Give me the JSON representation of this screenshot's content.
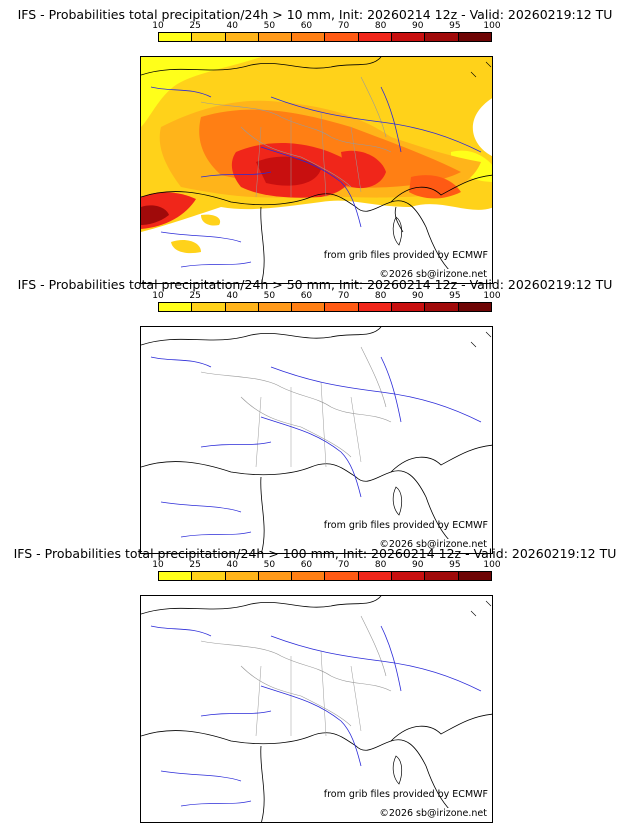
{
  "colorbar": {
    "ticks": [
      "10",
      "25",
      "40",
      "50",
      "60",
      "70",
      "80",
      "90",
      "95",
      "100"
    ],
    "colors": [
      "#ffff1a",
      "#ffd21a",
      "#ffb41a",
      "#ff9a1a",
      "#ff7f14",
      "#ff5a14",
      "#f0261a",
      "#c80f0f",
      "#a00a0a",
      "#6e0505"
    ]
  },
  "colors": {
    "land_border": "#000000",
    "admin_border": "#9a9a9a",
    "rivers": "#2b2bd8",
    "background": "#ffffff"
  },
  "panels": [
    {
      "title": "IFS - Probabilities total precipitation/24h > 10 mm, Init: 20260214 12z - Valid: 20260219:12 TU",
      "threshold_mm": 10,
      "has_precip_field": true,
      "credit_source": "from grib files provided by ECMWF",
      "credit_copy": "©2026 sb@irizone.net"
    },
    {
      "title": "IFS - Probabilities total precipitation/24h > 50 mm, Init: 20260214 12z - Valid: 20260219:12 TU",
      "threshold_mm": 50,
      "has_precip_field": false,
      "credit_source": "from grib files provided by ECMWF",
      "credit_copy": "©2026 sb@irizone.net"
    },
    {
      "title": "IFS - Probabilities total precipitation/24h > 100 mm, Init: 20260214 12z - Valid: 20260219:12 TU",
      "threshold_mm": 100,
      "has_precip_field": false,
      "credit_source": "from grib files provided by ECMWF",
      "credit_copy": "©2026 sb@irizone.net"
    }
  ]
}
